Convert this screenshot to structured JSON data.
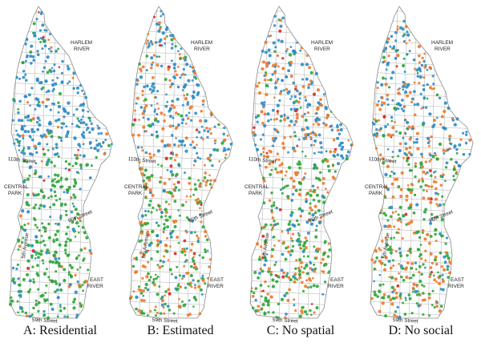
{
  "panels": [
    {
      "id": "A",
      "caption": "A: Residential",
      "mix": {
        "blue": 0.5,
        "orange": 0.05,
        "green": 0.45
      }
    },
    {
      "id": "B",
      "caption": "B: Estimated",
      "mix": {
        "blue": 0.38,
        "orange": 0.32,
        "green": 0.3
      }
    },
    {
      "id": "C",
      "caption": "C: No spatial",
      "mix": {
        "blue": 0.35,
        "orange": 0.38,
        "green": 0.27
      }
    },
    {
      "id": "D",
      "caption": "D: No social",
      "mix": {
        "blue": 0.34,
        "orange": 0.36,
        "green": 0.3
      }
    }
  ],
  "labels": {
    "harlem_river_1": "HARLEM",
    "harlem_river_2": "RIVER",
    "street_110": "110th Street",
    "central_park_1": "CENTRAL",
    "central_park_2": "PARK",
    "street_96": "96th Street",
    "avenue_5": "5th Avenue",
    "east_river_1": "EAST",
    "east_river_2": "RIVER",
    "street_59": "59th Street"
  },
  "colors": {
    "blue": "#2b8cc4",
    "orange": "#ec7a2b",
    "green": "#2fa53a",
    "red": "#d62728",
    "border": "#8a8a8a",
    "grid": "#b0b0b0"
  }
}
